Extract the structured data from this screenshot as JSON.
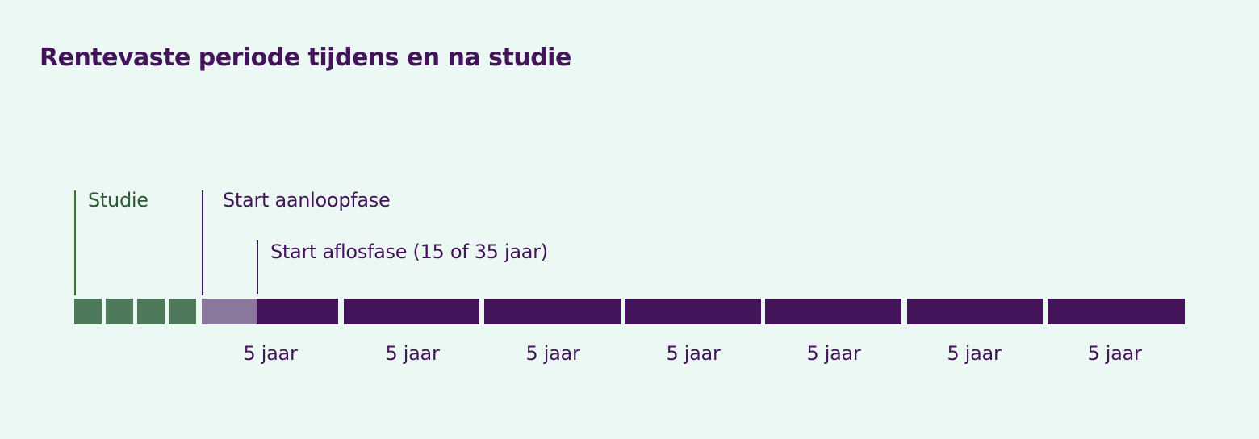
{
  "title": "Rentevaste periode tijdens en na studie",
  "markers": {
    "studie": "Studie",
    "aanloopfase": "Start aanloopfase",
    "aflosfase": "Start aflosfase (15 of 35 jaar)"
  },
  "periods": [
    "5 jaar",
    "5 jaar",
    "5 jaar",
    "5 jaar",
    "5 jaar",
    "5 jaar",
    "5 jaar"
  ],
  "colors": {
    "background": "#ecf8f3",
    "studie": "#4e7a5b",
    "studie_line": "#3d7a1a",
    "aanloop": "#8b769c",
    "aflos": "#43145a"
  }
}
